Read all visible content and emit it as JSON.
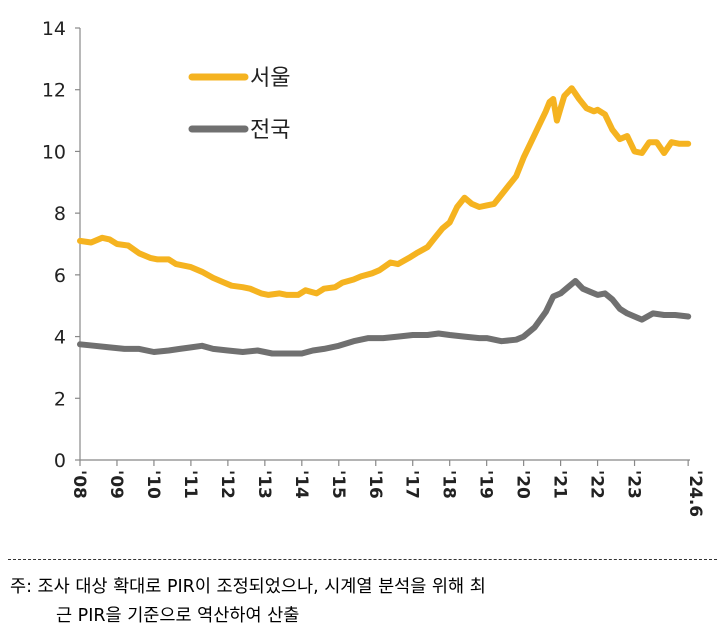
{
  "chart_data": {
    "type": "line",
    "title": "",
    "xlabel": "",
    "ylabel": "",
    "ylim": [
      0,
      14
    ],
    "yticks": [
      "0",
      "2",
      "4",
      "6",
      "8",
      "10",
      "12",
      "14"
    ],
    "xticks": [
      "'08",
      "'09",
      "'10",
      "'11",
      "'12",
      "'13",
      "'14",
      "'15",
      "'16",
      "'17",
      "'18",
      "'19",
      "'20",
      "'21",
      "'22",
      "'23",
      "'24.6"
    ],
    "xlim": [
      2008.0,
      2024.5
    ],
    "legend_position": "top-left",
    "grid": false,
    "series": [
      {
        "name": "서울",
        "color": "#F5B320",
        "x": [
          2008.0,
          2008.3,
          2008.6,
          2008.8,
          2009.0,
          2009.3,
          2009.6,
          2009.9,
          2010.1,
          2010.4,
          2010.6,
          2010.8,
          2011.0,
          2011.3,
          2011.6,
          2011.9,
          2012.1,
          2012.4,
          2012.6,
          2012.9,
          2013.1,
          2013.4,
          2013.6,
          2013.9,
          2014.1,
          2014.4,
          2014.6,
          2014.9,
          2015.1,
          2015.4,
          2015.6,
          2015.9,
          2016.1,
          2016.4,
          2016.6,
          2016.9,
          2017.1,
          2017.4,
          2017.6,
          2017.8,
          2018.0,
          2018.2,
          2018.4,
          2018.6,
          2018.8,
          2019.0,
          2019.2,
          2019.4,
          2019.6,
          2019.8,
          2020.0,
          2020.2,
          2020.4,
          2020.6,
          2020.7,
          2020.8,
          2020.9,
          2021.0,
          2021.1,
          2021.3,
          2021.5,
          2021.7,
          2021.9,
          2022.0,
          2022.2,
          2022.4,
          2022.6,
          2022.8,
          2023.0,
          2023.2,
          2023.4,
          2023.6,
          2023.8,
          2024.0,
          2024.2,
          2024.45
        ],
        "values": [
          7.1,
          7.05,
          7.2,
          7.15,
          7.0,
          6.95,
          6.7,
          6.55,
          6.5,
          6.5,
          6.35,
          6.3,
          6.25,
          6.1,
          5.9,
          5.75,
          5.65,
          5.6,
          5.55,
          5.4,
          5.35,
          5.4,
          5.35,
          5.35,
          5.5,
          5.4,
          5.55,
          5.6,
          5.75,
          5.85,
          5.95,
          6.05,
          6.15,
          6.4,
          6.35,
          6.55,
          6.7,
          6.9,
          7.2,
          7.5,
          7.7,
          8.2,
          8.5,
          8.3,
          8.2,
          8.25,
          8.3,
          8.6,
          8.9,
          9.2,
          9.8,
          10.3,
          10.8,
          11.3,
          11.6,
          11.7,
          11.0,
          11.4,
          11.8,
          12.05,
          11.7,
          11.4,
          11.3,
          11.35,
          11.2,
          10.7,
          10.4,
          10.5,
          10.0,
          9.95,
          10.3,
          10.3,
          9.95,
          10.3,
          10.25,
          10.25
        ]
      },
      {
        "name": "전국",
        "color": "#707070",
        "x": [
          2008.0,
          2008.4,
          2008.8,
          2009.2,
          2009.6,
          2010.0,
          2010.4,
          2010.7,
          2011.0,
          2011.3,
          2011.6,
          2012.0,
          2012.4,
          2012.8,
          2013.2,
          2013.6,
          2014.0,
          2014.3,
          2014.6,
          2015.0,
          2015.4,
          2015.8,
          2016.2,
          2016.6,
          2017.0,
          2017.4,
          2017.7,
          2018.0,
          2018.4,
          2018.8,
          2019.0,
          2019.4,
          2019.8,
          2020.0,
          2020.3,
          2020.6,
          2020.8,
          2021.0,
          2021.2,
          2021.4,
          2021.6,
          2021.8,
          2022.0,
          2022.2,
          2022.4,
          2022.6,
          2022.8,
          2023.0,
          2023.2,
          2023.5,
          2023.8,
          2024.1,
          2024.45
        ],
        "values": [
          3.75,
          3.7,
          3.65,
          3.6,
          3.6,
          3.5,
          3.55,
          3.6,
          3.65,
          3.7,
          3.6,
          3.55,
          3.5,
          3.55,
          3.45,
          3.45,
          3.45,
          3.55,
          3.6,
          3.7,
          3.85,
          3.95,
          3.95,
          4.0,
          4.05,
          4.05,
          4.1,
          4.05,
          4.0,
          3.95,
          3.95,
          3.85,
          3.9,
          4.0,
          4.3,
          4.8,
          5.3,
          5.4,
          5.6,
          5.8,
          5.55,
          5.45,
          5.35,
          5.4,
          5.2,
          4.9,
          4.75,
          4.65,
          4.55,
          4.75,
          4.7,
          4.7,
          4.65
        ]
      }
    ]
  },
  "note": {
    "line1": "주: 조사 대상 확대로 PIR이 조정되었으나, 시계열 분석을 위해 최",
    "line2": "근 PIR을 기준으로 역산하여 산출"
  }
}
